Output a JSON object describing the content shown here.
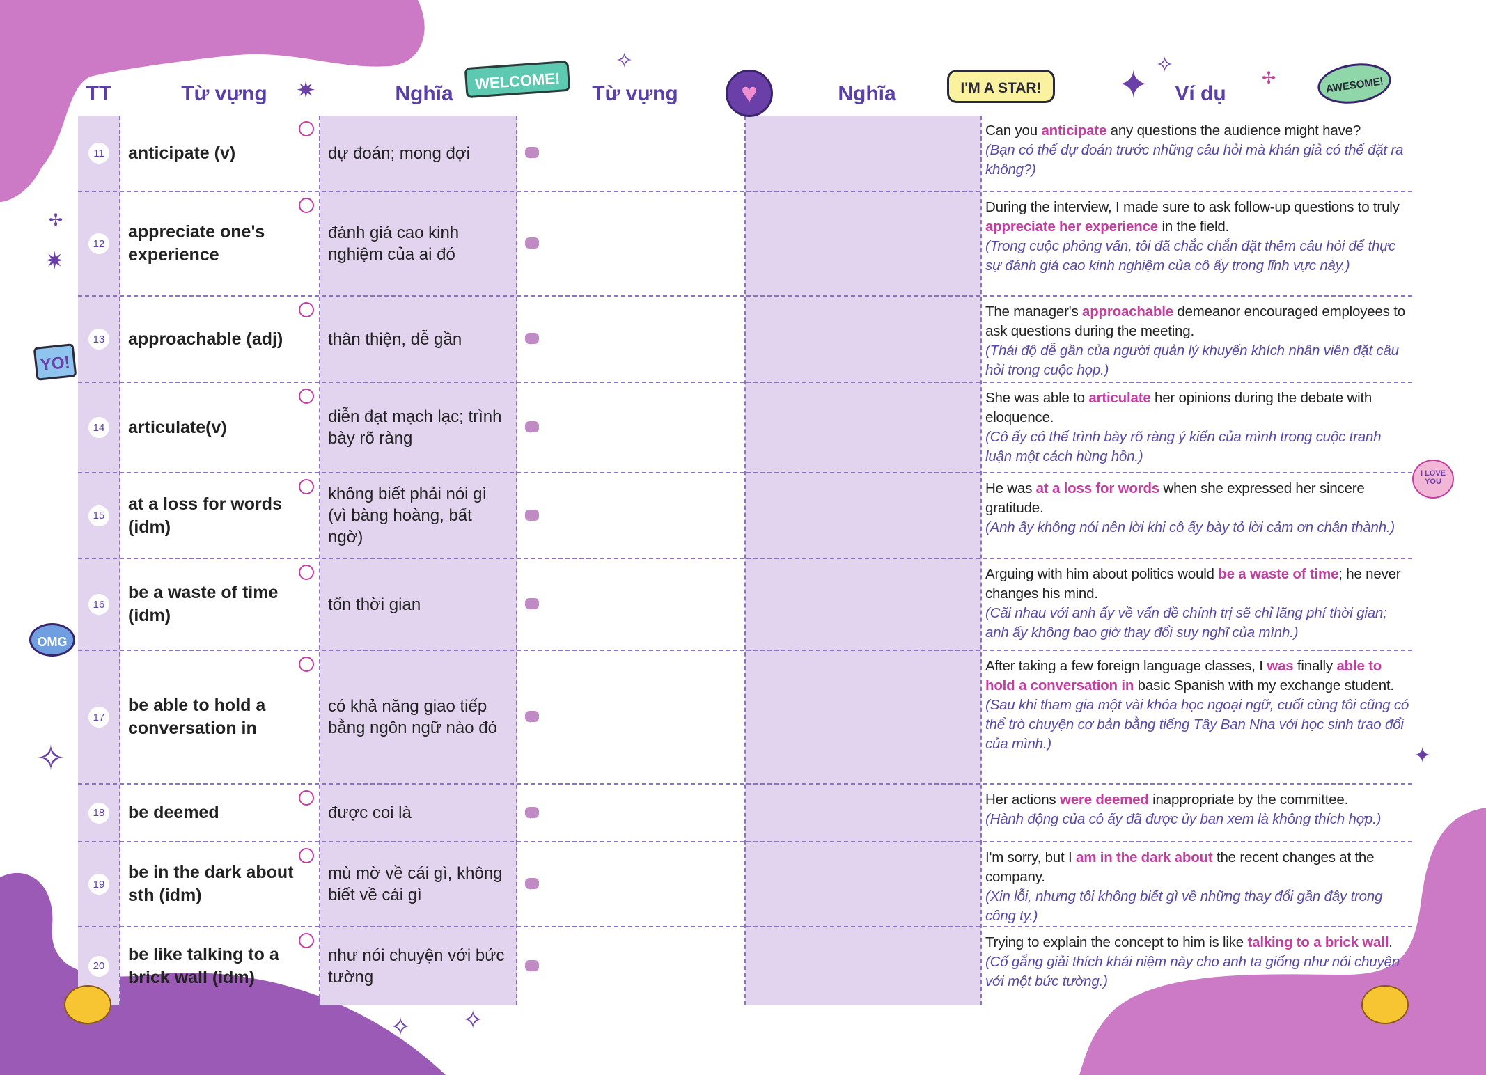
{
  "headers": {
    "tt": "TT",
    "word": "Từ vựng",
    "meaning": "Nghĩa",
    "word2": "Từ vựng",
    "meaning2": "Nghĩa",
    "example": "Ví dụ"
  },
  "colors": {
    "header": "#5b3fa8",
    "highlight": "#c43ea0",
    "translation": "#5a48a8",
    "column_fill": "#e2d4ee",
    "blob_pink": "#cc7ac6",
    "blob_purple": "#9b5ab5"
  },
  "stickers": {
    "welcome": "WELCOME!",
    "star": "I'M A STAR!",
    "awesome": "AWESOME!",
    "yo": "YO!",
    "omg": "OMG",
    "love": "I LOVE YOU"
  },
  "rows": [
    {
      "n": "11",
      "word": "anticipate (v)",
      "meaning": "dự đoán; mong đợi",
      "example": [
        {
          "t": "Can you "
        },
        {
          "t": "anticipate",
          "b": true
        },
        {
          "t": " any questions the audience might have?"
        }
      ],
      "translation": "(Bạn có thể dự đoán trước những câu hỏi mà khán giả có thể đặt ra không?)"
    },
    {
      "n": "12",
      "word": "appreciate one's experience",
      "meaning": "đánh giá cao kinh nghiệm của ai đó",
      "example": [
        {
          "t": "During the interview, I made sure to ask follow-up questions to truly "
        },
        {
          "t": "appreciate her experience",
          "b": true
        },
        {
          "t": " in the field."
        }
      ],
      "translation": "(Trong cuộc phỏng vấn, tôi đã chắc chắn đặt thêm câu hỏi để thực sự đánh giá cao kinh nghiệm của cô ấy trong lĩnh vực này.)"
    },
    {
      "n": "13",
      "word": "approachable (adj)",
      "meaning": "thân thiện, dễ gần",
      "example": [
        {
          "t": "The manager's "
        },
        {
          "t": "approachable",
          "b": true
        },
        {
          "t": " demeanor encouraged employees to ask questions during the meeting."
        }
      ],
      "translation": "(Thái độ dễ gần của người quản lý khuyến khích nhân viên đặt câu hỏi trong cuộc họp.)"
    },
    {
      "n": "14",
      "word": "articulate(v)",
      "meaning": "diễn đạt mạch lạc; trình bày rõ ràng",
      "example": [
        {
          "t": "She was able to "
        },
        {
          "t": "articulate",
          "b": true
        },
        {
          "t": " her opinions during the debate with eloquence."
        }
      ],
      "translation": "(Cô ấy có thể trình bày rõ ràng ý kiến của mình trong cuộc tranh luận một cách hùng hồn.)"
    },
    {
      "n": "15",
      "word": "at a loss for words (idm)",
      "meaning": "không biết phải nói gì (vì bàng hoàng, bất ngờ)",
      "example": [
        {
          "t": "He was "
        },
        {
          "t": "at a loss for words",
          "b": true
        },
        {
          "t": " when she expressed her sincere gratitude."
        }
      ],
      "translation": "(Anh ấy không nói nên lời khi cô ấy bày tỏ lời cảm ơn chân thành.)"
    },
    {
      "n": "16",
      "word": "be a waste of time (idm)",
      "meaning": "tốn thời gian",
      "example": [
        {
          "t": "Arguing with him about politics would "
        },
        {
          "t": "be a waste of time",
          "b": true
        },
        {
          "t": "; he never changes his mind."
        }
      ],
      "translation": "(Cãi nhau với anh ấy về vấn đề chính trị sẽ chỉ lãng phí thời gian; anh ấy không bao giờ thay đổi suy nghĩ của mình.)"
    },
    {
      "n": "17",
      "word": "be able to hold a conversation in",
      "meaning": "có khả năng giao tiếp bằng ngôn ngữ nào đó",
      "example": [
        {
          "t": "After taking a few foreign language classes, I "
        },
        {
          "t": "was",
          "b": true
        },
        {
          "t": " finally "
        },
        {
          "t": "able to hold a conversation in",
          "b": true
        },
        {
          "t": " basic Spanish with my exchange student."
        }
      ],
      "translation": "(Sau khi tham gia một vài khóa học ngoại ngữ, cuối cùng tôi cũng có thể trò chuyện cơ bản bằng tiếng Tây Ban Nha với học sinh trao đổi của mình.)"
    },
    {
      "n": "18",
      "word": "be deemed",
      "meaning": "được coi là",
      "example": [
        {
          "t": "Her actions "
        },
        {
          "t": "were deemed",
          "b": true
        },
        {
          "t": " inappropriate by the committee."
        }
      ],
      "translation": "(Hành động của cô ấy đã được ủy ban xem là không thích hợp.)"
    },
    {
      "n": "19",
      "word": "be in the dark about sth (idm)",
      "meaning": "mù mờ về cái gì, không biết về cái gì",
      "example": [
        {
          "t": "I'm sorry, but I "
        },
        {
          "t": "am in the dark about",
          "b": true
        },
        {
          "t": " the recent changes at the company."
        }
      ],
      "translation": "(Xin lỗi, nhưng tôi không biết gì về những thay đổi gần đây trong công ty.)"
    },
    {
      "n": "20",
      "word": "be like talking to a brick wall (idm)",
      "meaning": "như nói chuyện với bức tường",
      "example": [
        {
          "t": "Trying to explain the concept to him is like "
        },
        {
          "t": "talking to a brick wall",
          "b": true
        },
        {
          "t": ". "
        }
      ],
      "translation": "(Cố gắng giải thích khái niệm này cho anh ta giống như nói chuyện với một bức tường.)"
    }
  ]
}
